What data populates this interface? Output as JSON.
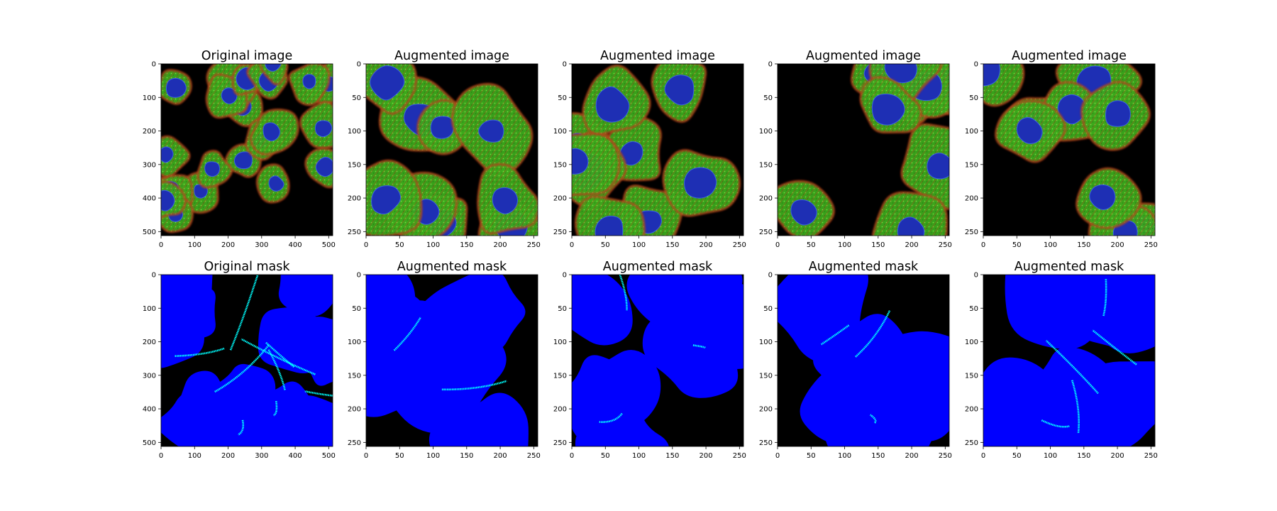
{
  "panels": [
    {
      "title": "Original image",
      "kind": "image",
      "xticks": [
        "0",
        "100",
        "200",
        "300",
        "400",
        "500"
      ],
      "yticks": [
        "0",
        "100",
        "200",
        "300",
        "400",
        "500"
      ],
      "range": 512
    },
    {
      "title": "Augmented image",
      "kind": "image",
      "xticks": [
        "0",
        "50",
        "100",
        "150",
        "200",
        "250"
      ],
      "yticks": [
        "0",
        "50",
        "100",
        "150",
        "200",
        "250"
      ],
      "range": 256
    },
    {
      "title": "Augmented image",
      "kind": "image",
      "xticks": [
        "0",
        "50",
        "100",
        "150",
        "200",
        "250"
      ],
      "yticks": [
        "0",
        "50",
        "100",
        "150",
        "200",
        "250"
      ],
      "range": 256
    },
    {
      "title": "Augmented image",
      "kind": "image",
      "xticks": [
        "0",
        "50",
        "100",
        "150",
        "200",
        "250"
      ],
      "yticks": [
        "0",
        "50",
        "100",
        "150",
        "200",
        "250"
      ],
      "range": 256
    },
    {
      "title": "Augmented image",
      "kind": "image",
      "xticks": [
        "0",
        "50",
        "100",
        "150",
        "200",
        "250"
      ],
      "yticks": [
        "0",
        "50",
        "100",
        "150",
        "200",
        "250"
      ],
      "range": 256
    },
    {
      "title": "Original mask",
      "kind": "mask",
      "xticks": [
        "0",
        "100",
        "200",
        "300",
        "400",
        "500"
      ],
      "yticks": [
        "0",
        "100",
        "200",
        "300",
        "400",
        "500"
      ],
      "range": 512
    },
    {
      "title": "Augmented mask",
      "kind": "mask",
      "xticks": [
        "0",
        "50",
        "100",
        "150",
        "200",
        "250"
      ],
      "yticks": [
        "0",
        "50",
        "100",
        "150",
        "200",
        "250"
      ],
      "range": 256
    },
    {
      "title": "Augmented mask",
      "kind": "mask",
      "xticks": [
        "0",
        "50",
        "100",
        "150",
        "200",
        "250"
      ],
      "yticks": [
        "0",
        "50",
        "100",
        "150",
        "200",
        "250"
      ],
      "range": 256
    },
    {
      "title": "Augmented mask",
      "kind": "mask",
      "xticks": [
        "0",
        "50",
        "100",
        "150",
        "200",
        "250"
      ],
      "yticks": [
        "0",
        "50",
        "100",
        "150",
        "200",
        "250"
      ],
      "range": 256
    },
    {
      "title": "Augmented mask",
      "kind": "mask",
      "xticks": [
        "0",
        "50",
        "100",
        "150",
        "200",
        "250"
      ],
      "yticks": [
        "0",
        "50",
        "100",
        "150",
        "200",
        "250"
      ],
      "range": 256
    }
  ],
  "colors": {
    "background": "#000000",
    "cytoplasm_green": "#3ca81e",
    "filament_red": "#c4341a",
    "nucleus_blue": "#1e2fb4",
    "mask_blue": "#0000ff",
    "mask_boundary_cyan": "#00ffff"
  }
}
